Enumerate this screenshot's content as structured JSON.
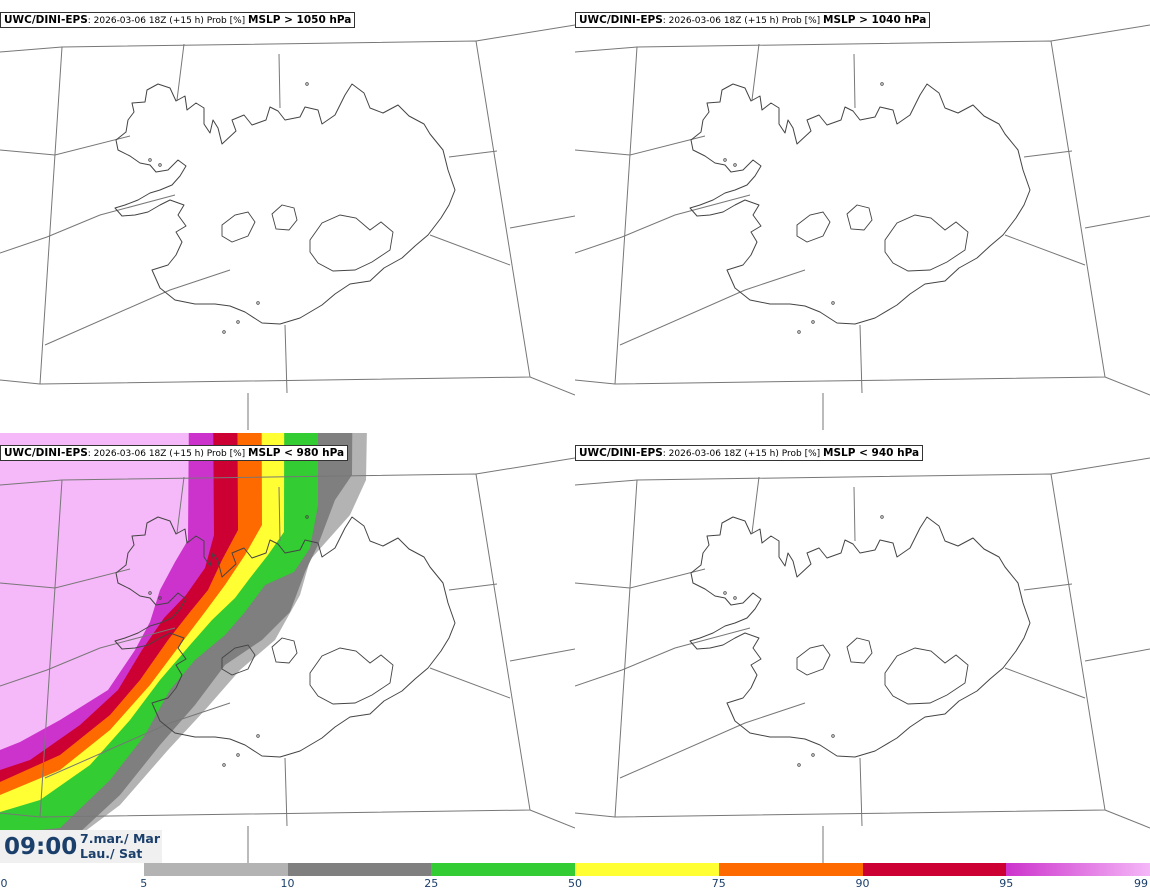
{
  "panels": [
    {
      "model": "UWC/DINI-EPS",
      "info": ": 2026-03-06 18Z (+15 h) Prob [%] ",
      "criterion": "MSLP > 1050 hPa",
      "filled": false
    },
    {
      "model": "UWC/DINI-EPS",
      "info": ": 2026-03-06 18Z (+15 h) Prob [%] ",
      "criterion": "MSLP > 1040 hPa",
      "filled": false
    },
    {
      "model": "UWC/DINI-EPS",
      "info": ": 2026-03-06 18Z (+15 h) Prob [%] ",
      "criterion": "MSLP < 980 hPa",
      "filled": true
    },
    {
      "model": "UWC/DINI-EPS",
      "info": ": 2026-03-06 18Z (+15 h) Prob [%] ",
      "criterion": "MSLP < 940 hPa",
      "filled": false
    }
  ],
  "valid_time": {
    "time": "09:00",
    "date_line1": "7.mar./ Mar",
    "date_line2": "Lau./ Sat"
  },
  "colorbar": {
    "ticks": [
      "0",
      "5",
      "10",
      "25",
      "50",
      "75",
      "90",
      "95",
      "99"
    ],
    "colors": [
      "#ffffff",
      "#b3b3b3",
      "#7f7f7f",
      "#33cc33",
      "#ffff33",
      "#ff6a00",
      "#cc0033",
      "#cc33cc",
      "#f5b8f8"
    ]
  },
  "palette": {
    "coast": "#444444",
    "grid": "#777777",
    "band_5": "#b3b3b3",
    "band_10": "#7f7f7f",
    "band_25": "#33cc33",
    "band_50": "#ffff33",
    "band_75": "#ff6a00",
    "band_90": "#cc0033",
    "band_95": "#cc33cc",
    "band_99": "#f5b8f8",
    "text_blue": "#1b3f6b"
  }
}
